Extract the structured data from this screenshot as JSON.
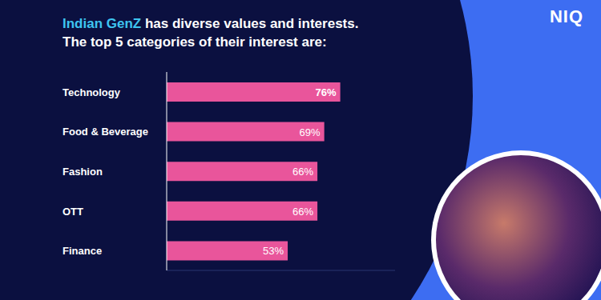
{
  "chart_data": {
    "type": "bar",
    "orientation": "horizontal",
    "title": "Indian GenZ has diverse values and interests.",
    "subtitle": "The top 5 categories of their interest are:",
    "categories": [
      "Technology",
      "Food & Beverage",
      "Fashion",
      "OTT",
      "Finance"
    ],
    "values": [
      76,
      69,
      66,
      66,
      53
    ],
    "value_labels": [
      "76%",
      "69%",
      "66%",
      "66%",
      "53%"
    ],
    "data_labels": true,
    "color": "#e9559b",
    "xlim": [
      0,
      100
    ],
    "tick_labels": "y",
    "grid": false,
    "annotations": [
      "NIQ"
    ]
  }
}
